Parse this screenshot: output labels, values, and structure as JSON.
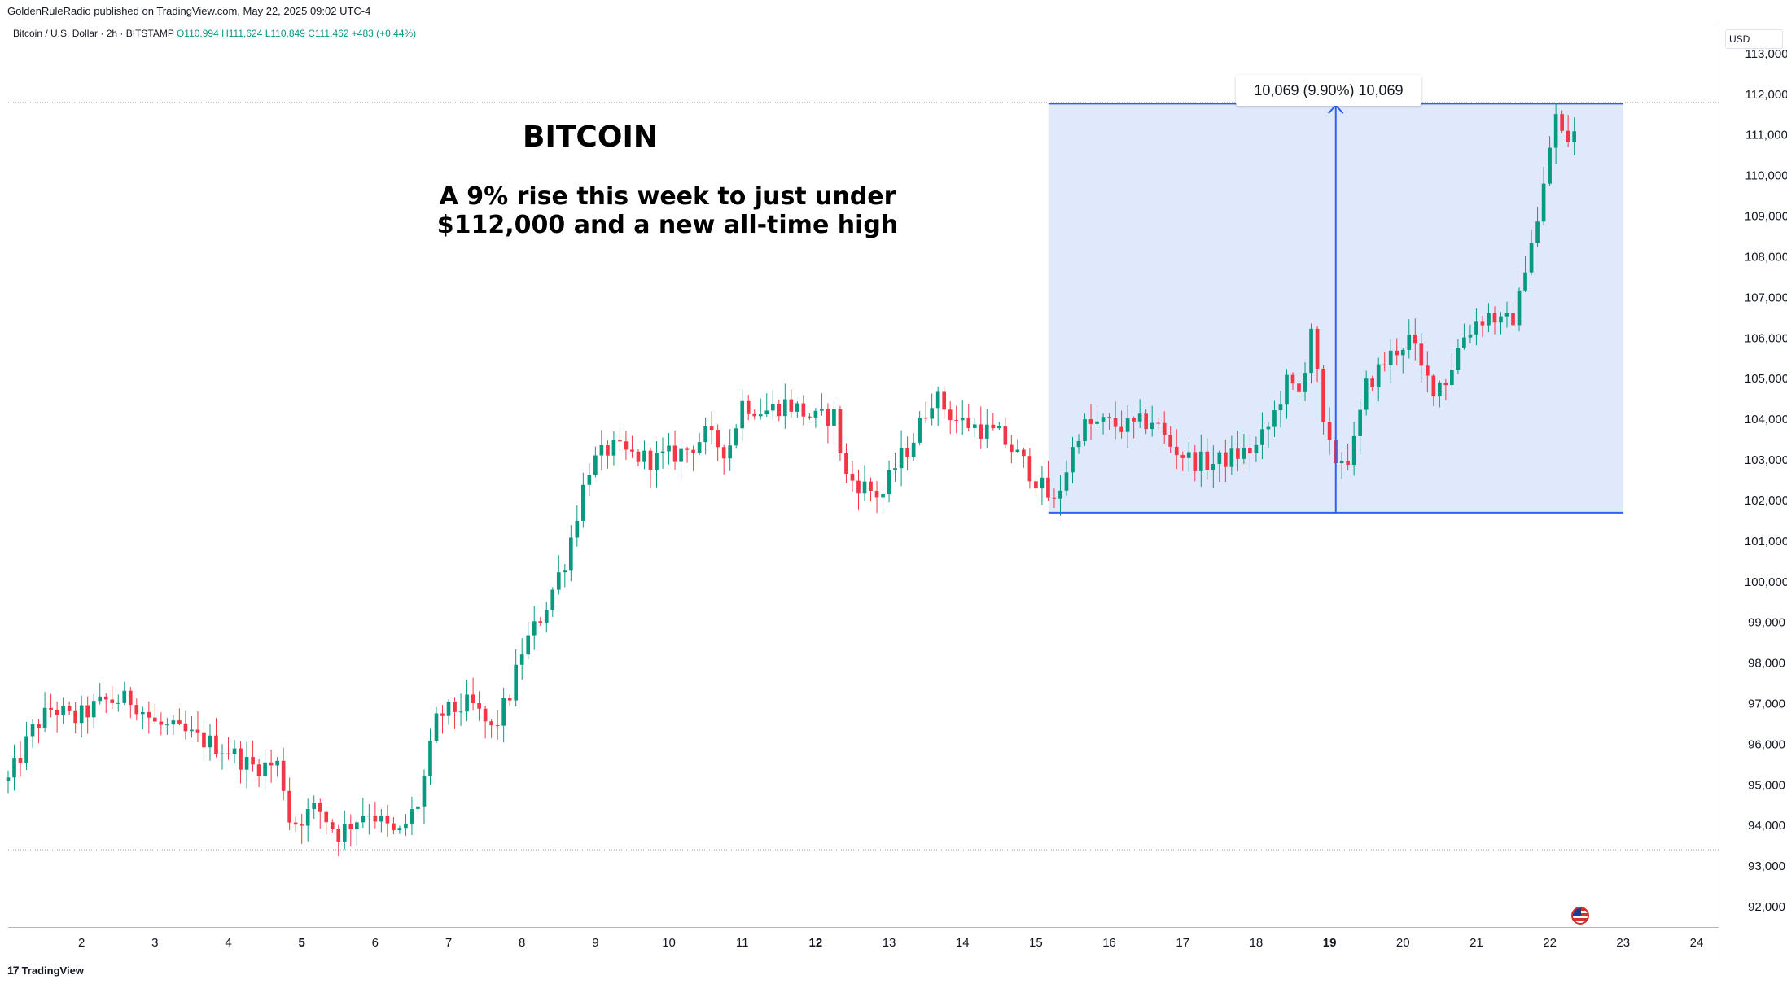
{
  "header": {
    "publisher": "GoldenRuleRadio published on TradingView.com, May 22, 2025 09:02 UTC-4",
    "symbol": "Bitcoin / U.S. Dollar · 2h · BITSTAMP",
    "ohlc": "O110,994 H111,624 L110,849 C111,462 +483 (+0.44%)"
  },
  "currency_label": "USD",
  "annotation": {
    "title": "BITCOIN",
    "line1": "A 9% rise this week to just under",
    "line2": "$112,000 and a new all-time high"
  },
  "measure_label": "10,069 (9.90%) 10,069",
  "footer_brand": "TradingView",
  "footer_icon": "tradingview-logo-icon",
  "colors": {
    "up": "#089981",
    "down": "#f23645",
    "measure_fill": "#dde5fb",
    "measure_line": "#2962ff"
  },
  "chart_data": {
    "type": "candlestick",
    "timeframe": "2h",
    "ylim": [
      91500,
      113800
    ],
    "y_ticks": [
      92000,
      93000,
      94000,
      95000,
      96000,
      97000,
      98000,
      99000,
      100000,
      101000,
      102000,
      103000,
      104000,
      105000,
      106000,
      107000,
      108000,
      109000,
      110000,
      111000,
      112000,
      113000
    ],
    "x_range_days": [
      1.0,
      24.3
    ],
    "x_ticks": [
      {
        "day": 2,
        "label": "2",
        "bold": false
      },
      {
        "day": 3,
        "label": "3",
        "bold": false
      },
      {
        "day": 4,
        "label": "4",
        "bold": false
      },
      {
        "day": 5,
        "label": "5",
        "bold": true
      },
      {
        "day": 6,
        "label": "6",
        "bold": false
      },
      {
        "day": 7,
        "label": "7",
        "bold": false
      },
      {
        "day": 8,
        "label": "8",
        "bold": false
      },
      {
        "day": 9,
        "label": "9",
        "bold": false
      },
      {
        "day": 10,
        "label": "10",
        "bold": false
      },
      {
        "day": 11,
        "label": "11",
        "bold": false
      },
      {
        "day": 12,
        "label": "12",
        "bold": true
      },
      {
        "day": 13,
        "label": "13",
        "bold": false
      },
      {
        "day": 14,
        "label": "14",
        "bold": false
      },
      {
        "day": 15,
        "label": "15",
        "bold": false
      },
      {
        "day": 16,
        "label": "16",
        "bold": false
      },
      {
        "day": 17,
        "label": "17",
        "bold": false
      },
      {
        "day": 18,
        "label": "18",
        "bold": false
      },
      {
        "day": 19,
        "label": "19",
        "bold": true
      },
      {
        "day": 20,
        "label": "20",
        "bold": false
      },
      {
        "day": 21,
        "label": "21",
        "bold": false
      },
      {
        "day": 22,
        "label": "22",
        "bold": false
      },
      {
        "day": 23,
        "label": "23",
        "bold": false
      },
      {
        "day": 24,
        "label": "24",
        "bold": false
      }
    ],
    "high_line": 111800,
    "low_line": 93400,
    "measure": {
      "x_start_day": 15.17,
      "x_end_day": 23.0,
      "low": 101700,
      "high": 111770
    },
    "close_path": [
      [
        1.0,
        95100
      ],
      [
        1.35,
        96400
      ],
      [
        1.6,
        96900
      ],
      [
        1.9,
        96600
      ],
      [
        2.3,
        97050
      ],
      [
        2.7,
        97100
      ],
      [
        3.0,
        96500
      ],
      [
        3.5,
        96200
      ],
      [
        4.0,
        95850
      ],
      [
        4.3,
        95450
      ],
      [
        4.7,
        95500
      ],
      [
        4.85,
        94000
      ],
      [
        5.2,
        94450
      ],
      [
        5.5,
        93800
      ],
      [
        5.9,
        94400
      ],
      [
        6.3,
        93700
      ],
      [
        6.6,
        94600
      ],
      [
        6.85,
        96700
      ],
      [
        7.3,
        97000
      ],
      [
        7.6,
        96300
      ],
      [
        7.85,
        97300
      ],
      [
        8.0,
        98300
      ],
      [
        8.3,
        99300
      ],
      [
        8.6,
        100600
      ],
      [
        8.9,
        102800
      ],
      [
        9.2,
        103300
      ],
      [
        9.5,
        103100
      ],
      [
        9.8,
        103000
      ],
      [
        10.2,
        103200
      ],
      [
        10.5,
        103600
      ],
      [
        10.8,
        103200
      ],
      [
        11.0,
        104400
      ],
      [
        11.3,
        104200
      ],
      [
        11.6,
        104400
      ],
      [
        12.0,
        104000
      ],
      [
        12.25,
        104100
      ],
      [
        12.4,
        102600
      ],
      [
        12.7,
        102300
      ],
      [
        12.9,
        102100
      ],
      [
        13.1,
        102900
      ],
      [
        13.3,
        103400
      ],
      [
        13.6,
        104600
      ],
      [
        13.9,
        104000
      ],
      [
        14.2,
        103800
      ],
      [
        14.5,
        103600
      ],
      [
        14.8,
        103000
      ],
      [
        15.05,
        102400
      ],
      [
        15.25,
        101900
      ],
      [
        15.4,
        102700
      ],
      [
        15.6,
        103800
      ],
      [
        15.9,
        103900
      ],
      [
        16.3,
        103800
      ],
      [
        16.6,
        104000
      ],
      [
        16.8,
        103400
      ],
      [
        17.1,
        103000
      ],
      [
        17.4,
        102900
      ],
      [
        17.7,
        103100
      ],
      [
        18.0,
        103300
      ],
      [
        18.2,
        103900
      ],
      [
        18.4,
        104900
      ],
      [
        18.6,
        104600
      ],
      [
        18.75,
        106300
      ],
      [
        18.92,
        103700
      ],
      [
        19.05,
        103000
      ],
      [
        19.3,
        103100
      ],
      [
        19.5,
        104800
      ],
      [
        19.75,
        105400
      ],
      [
        19.9,
        105700
      ],
      [
        20.1,
        106000
      ],
      [
        20.25,
        105200
      ],
      [
        20.4,
        104800
      ],
      [
        20.6,
        105000
      ],
      [
        20.8,
        106000
      ],
      [
        21.0,
        106400
      ],
      [
        21.2,
        106600
      ],
      [
        21.35,
        106300
      ],
      [
        21.55,
        106600
      ],
      [
        21.7,
        108200
      ],
      [
        21.85,
        108900
      ],
      [
        22.0,
        110700
      ],
      [
        22.05,
        111700
      ],
      [
        22.15,
        111000
      ],
      [
        22.3,
        110850
      ],
      [
        22.4,
        111460
      ]
    ]
  }
}
